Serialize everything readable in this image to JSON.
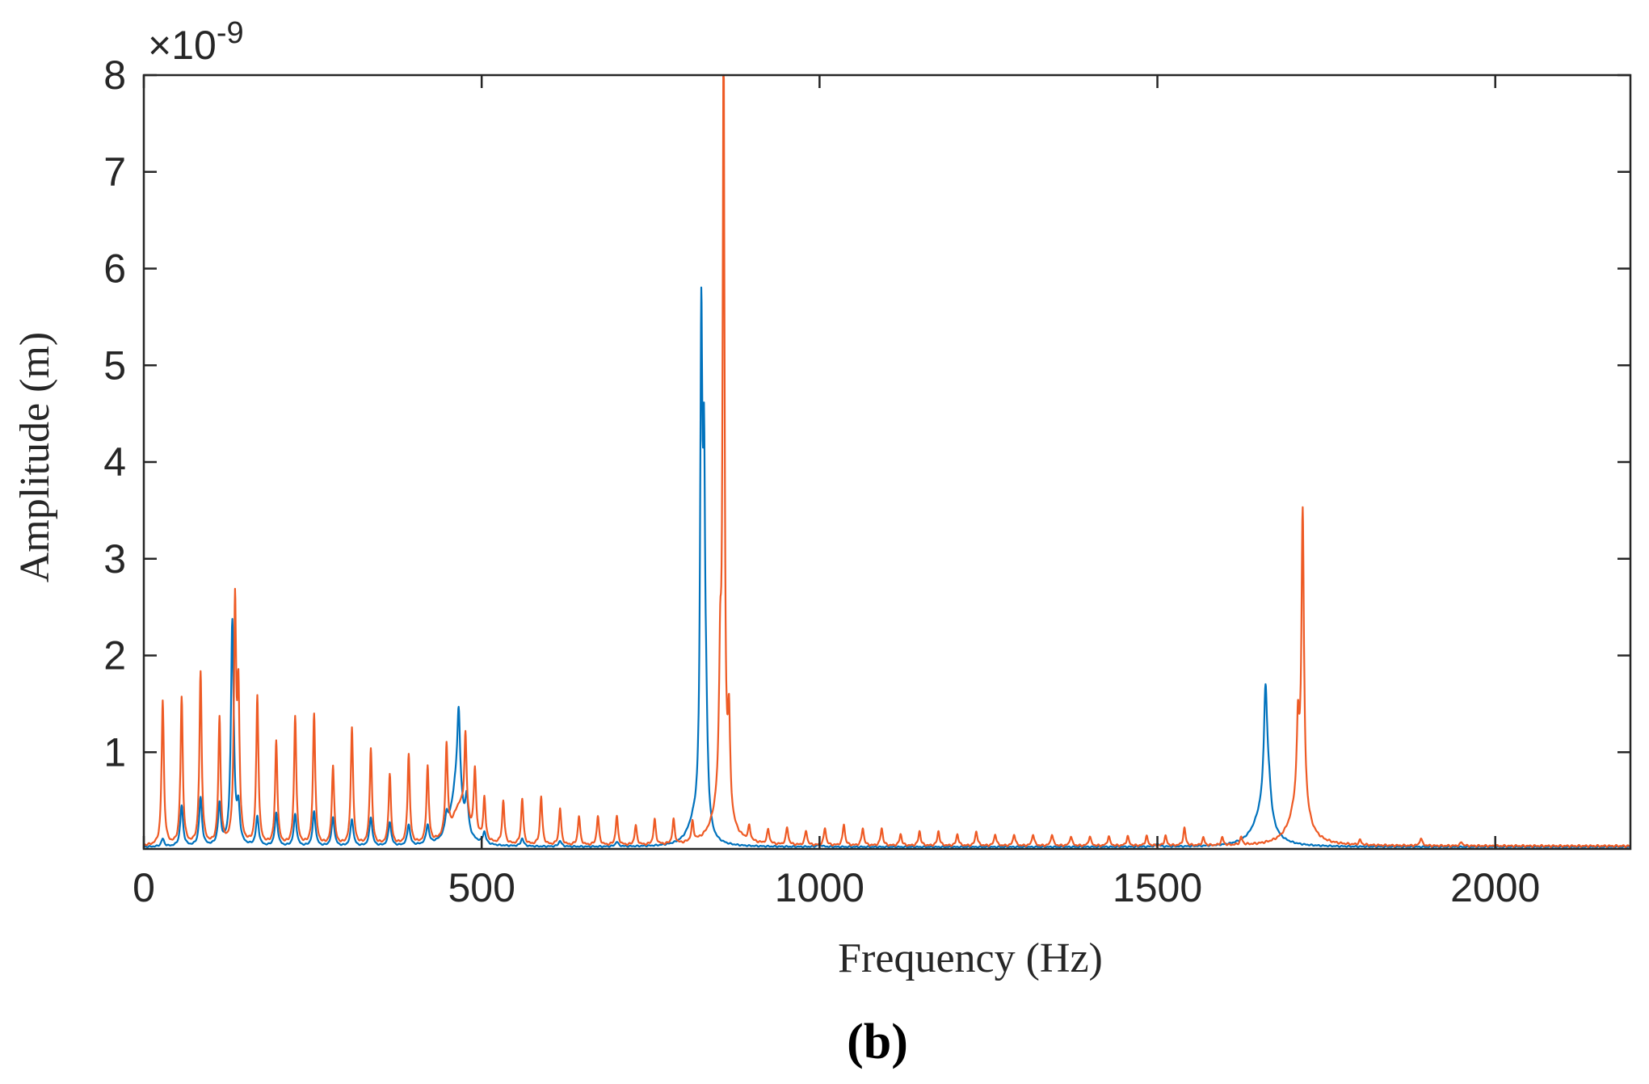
{
  "chart_data": {
    "type": "line",
    "caption": "(b)",
    "xlabel": "Frequency (Hz)",
    "ylabel": "Amplitude (m)",
    "y_multiplier": {
      "base": "×10",
      "exponent": "-9"
    },
    "xlim": [
      0,
      2200
    ],
    "ylim": [
      0,
      8
    ],
    "x_ticks": [
      0,
      500,
      1000,
      1500,
      2000
    ],
    "y_ticks": [
      1,
      2,
      3,
      4,
      5,
      6,
      7,
      8
    ],
    "grid": false,
    "colors": {
      "series_1": "#0072BD",
      "series_2": "#EE5A24",
      "axes": "#262626"
    },
    "series": [
      {
        "color": "#0072BD",
        "baseline": 0.02,
        "peaks": [
          {
            "x": 28,
            "y": 0.08,
            "w": 2.5
          },
          {
            "x": 56,
            "y": 0.42,
            "w": 2.5
          },
          {
            "x": 84,
            "y": 0.5,
            "w": 2.5
          },
          {
            "x": 112,
            "y": 0.42,
            "w": 2.5
          },
          {
            "x": 131,
            "y": 2.32,
            "w": 2.5
          },
          {
            "x": 140,
            "y": 0.35,
            "w": 2.5
          },
          {
            "x": 168,
            "y": 0.3,
            "w": 2.5
          },
          {
            "x": 196,
            "y": 0.34,
            "w": 2.5
          },
          {
            "x": 224,
            "y": 0.33,
            "w": 2.5
          },
          {
            "x": 252,
            "y": 0.36,
            "w": 2.5
          },
          {
            "x": 280,
            "y": 0.3,
            "w": 2.5
          },
          {
            "x": 308,
            "y": 0.28,
            "w": 2.5
          },
          {
            "x": 336,
            "y": 0.3,
            "w": 2.5
          },
          {
            "x": 364,
            "y": 0.25,
            "w": 2.5
          },
          {
            "x": 392,
            "y": 0.22,
            "w": 2.5
          },
          {
            "x": 420,
            "y": 0.2,
            "w": 2.5
          },
          {
            "x": 448,
            "y": 0.18,
            "w": 2.5
          },
          {
            "x": 463,
            "y": 0.62,
            "w": 10
          },
          {
            "x": 466,
            "y": 0.86,
            "w": 2.5
          },
          {
            "x": 478,
            "y": 0.35,
            "w": 2.5
          },
          {
            "x": 504,
            "y": 0.12,
            "w": 2.5
          },
          {
            "x": 560,
            "y": 0.08,
            "w": 2.5
          },
          {
            "x": 616,
            "y": 0.06,
            "w": 2.5
          },
          {
            "x": 700,
            "y": 0.05,
            "w": 2.5
          },
          {
            "x": 815,
            "y": 0.22,
            "w": 12
          },
          {
            "x": 825,
            "y": 5.0,
            "w": 2
          },
          {
            "x": 829,
            "y": 3.05,
            "w": 1.8
          },
          {
            "x": 832,
            "y": 0.9,
            "w": 3
          },
          {
            "x": 1000,
            "y": 0.03,
            "w": 3
          },
          {
            "x": 1500,
            "y": 0.03,
            "w": 3
          },
          {
            "x": 1656,
            "y": 0.35,
            "w": 16
          },
          {
            "x": 1660,
            "y": 1.24,
            "w": 3
          },
          {
            "x": 1665,
            "y": 0.3,
            "w": 4
          }
        ]
      },
      {
        "color": "#EE5A24",
        "baseline": 0.03,
        "peaks": [
          {
            "x": 28,
            "y": 1.49,
            "w": 2
          },
          {
            "x": 56,
            "y": 1.52,
            "w": 2
          },
          {
            "x": 84,
            "y": 1.78,
            "w": 2
          },
          {
            "x": 112,
            "y": 1.3,
            "w": 2
          },
          {
            "x": 135,
            "y": 2.43,
            "w": 2
          },
          {
            "x": 140,
            "y": 1.47,
            "w": 2
          },
          {
            "x": 168,
            "y": 1.53,
            "w": 2
          },
          {
            "x": 196,
            "y": 1.07,
            "w": 2
          },
          {
            "x": 224,
            "y": 1.33,
            "w": 2
          },
          {
            "x": 252,
            "y": 1.36,
            "w": 2
          },
          {
            "x": 280,
            "y": 0.82,
            "w": 2
          },
          {
            "x": 308,
            "y": 1.22,
            "w": 2
          },
          {
            "x": 336,
            "y": 1.0,
            "w": 2
          },
          {
            "x": 364,
            "y": 0.73,
            "w": 2
          },
          {
            "x": 392,
            "y": 0.93,
            "w": 2
          },
          {
            "x": 420,
            "y": 0.79,
            "w": 2
          },
          {
            "x": 448,
            "y": 0.93,
            "w": 2
          },
          {
            "x": 468,
            "y": 0.4,
            "w": 14
          },
          {
            "x": 476,
            "y": 0.86,
            "w": 2
          },
          {
            "x": 490,
            "y": 0.68,
            "w": 2
          },
          {
            "x": 504,
            "y": 0.44,
            "w": 2
          },
          {
            "x": 532,
            "y": 0.44,
            "w": 2
          },
          {
            "x": 560,
            "y": 0.47,
            "w": 2
          },
          {
            "x": 588,
            "y": 0.5,
            "w": 2
          },
          {
            "x": 616,
            "y": 0.38,
            "w": 2
          },
          {
            "x": 644,
            "y": 0.3,
            "w": 2
          },
          {
            "x": 672,
            "y": 0.3,
            "w": 2
          },
          {
            "x": 700,
            "y": 0.3,
            "w": 2
          },
          {
            "x": 728,
            "y": 0.2,
            "w": 2
          },
          {
            "x": 756,
            "y": 0.26,
            "w": 2
          },
          {
            "x": 784,
            "y": 0.25,
            "w": 2
          },
          {
            "x": 812,
            "y": 0.2,
            "w": 2
          },
          {
            "x": 855,
            "y": 0.45,
            "w": 14
          },
          {
            "x": 853,
            "y": 1.3,
            "w": 2
          },
          {
            "x": 858,
            "y": 8.0,
            "w": 1.6
          },
          {
            "x": 866,
            "y": 0.95,
            "w": 2
          },
          {
            "x": 896,
            "y": 0.15,
            "w": 2
          },
          {
            "x": 924,
            "y": 0.15,
            "w": 2
          },
          {
            "x": 952,
            "y": 0.18,
            "w": 2
          },
          {
            "x": 980,
            "y": 0.15,
            "w": 2
          },
          {
            "x": 1008,
            "y": 0.18,
            "w": 2
          },
          {
            "x": 1036,
            "y": 0.22,
            "w": 2
          },
          {
            "x": 1064,
            "y": 0.18,
            "w": 2
          },
          {
            "x": 1092,
            "y": 0.18,
            "w": 2
          },
          {
            "x": 1120,
            "y": 0.12,
            "w": 2
          },
          {
            "x": 1148,
            "y": 0.15,
            "w": 2
          },
          {
            "x": 1176,
            "y": 0.15,
            "w": 2
          },
          {
            "x": 1204,
            "y": 0.12,
            "w": 2
          },
          {
            "x": 1232,
            "y": 0.15,
            "w": 2
          },
          {
            "x": 1260,
            "y": 0.12,
            "w": 2
          },
          {
            "x": 1288,
            "y": 0.12,
            "w": 2
          },
          {
            "x": 1316,
            "y": 0.12,
            "w": 2
          },
          {
            "x": 1344,
            "y": 0.12,
            "w": 2
          },
          {
            "x": 1372,
            "y": 0.1,
            "w": 2
          },
          {
            "x": 1400,
            "y": 0.1,
            "w": 2
          },
          {
            "x": 1428,
            "y": 0.1,
            "w": 2
          },
          {
            "x": 1456,
            "y": 0.1,
            "w": 2
          },
          {
            "x": 1484,
            "y": 0.1,
            "w": 2
          },
          {
            "x": 1512,
            "y": 0.1,
            "w": 2
          },
          {
            "x": 1540,
            "y": 0.18,
            "w": 2
          },
          {
            "x": 1568,
            "y": 0.08,
            "w": 2
          },
          {
            "x": 1596,
            "y": 0.08,
            "w": 2
          },
          {
            "x": 1624,
            "y": 0.08,
            "w": 2
          },
          {
            "x": 1710,
            "y": 0.5,
            "w": 14
          },
          {
            "x": 1715,
            "y": 3.0,
            "w": 2.2
          },
          {
            "x": 1708,
            "y": 0.75,
            "w": 2
          },
          {
            "x": 1800,
            "y": 0.05,
            "w": 2
          },
          {
            "x": 1890,
            "y": 0.08,
            "w": 2
          },
          {
            "x": 1950,
            "y": 0.04,
            "w": 2
          }
        ]
      }
    ]
  }
}
